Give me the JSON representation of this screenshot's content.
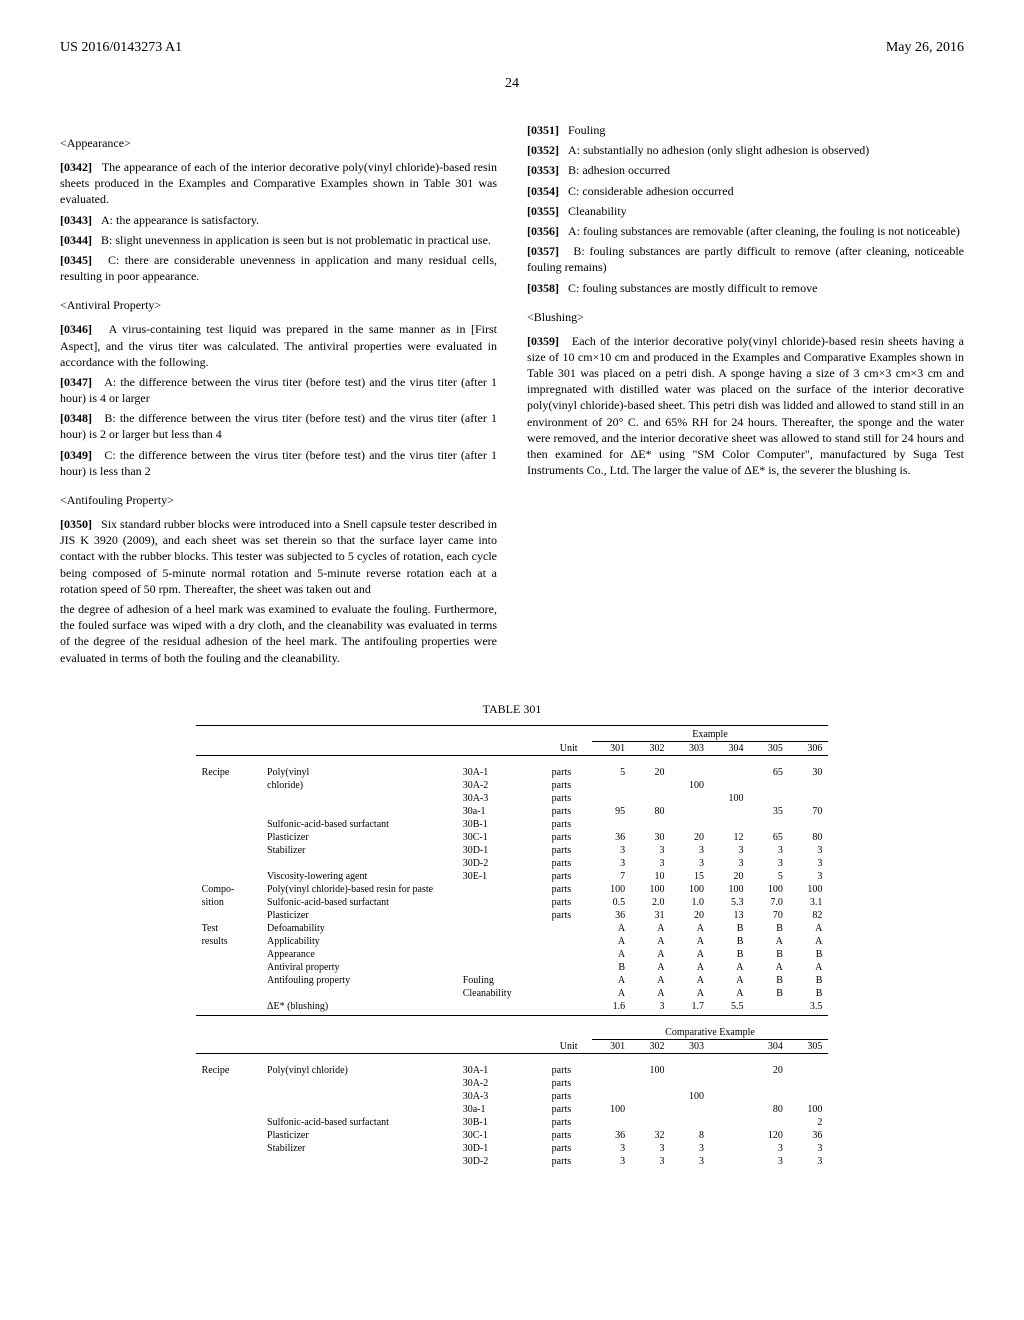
{
  "header": {
    "pub_number": "US 2016/0143273 A1",
    "pub_date": "May 26, 2016",
    "page": "24"
  },
  "sections": {
    "appearance": {
      "heading": "<Appearance>",
      "p0342": "The appearance of each of the interior decorative poly(vinyl chloride)-based resin sheets produced in the Examples and Comparative Examples shown in Table 301 was evaluated.",
      "p0343": "A: the appearance is satisfactory.",
      "p0344": "B: slight unevenness in application is seen but is not problematic in practical use.",
      "p0345": "C: there are considerable unevenness in application and many residual cells, resulting in poor appearance."
    },
    "antiviral": {
      "heading": "<Antiviral Property>",
      "p0346": "A virus-containing test liquid was prepared in the same manner as in [First Aspect], and the virus titer was calculated. The antiviral properties were evaluated in accordance with the following.",
      "p0347": "A: the difference between the virus titer (before test) and the virus titer (after 1 hour) is 4 or larger",
      "p0348": "B: the difference between the virus titer (before test) and the virus titer (after 1 hour) is 2 or larger but less than 4",
      "p0349": "C: the difference between the virus titer (before test) and the virus titer (after 1 hour) is less than 2"
    },
    "antifouling": {
      "heading": "<Antifouling Property>",
      "p0350": "Six standard rubber blocks were introduced into a Snell capsule tester described in JIS K 3920 (2009), and each sheet was set therein so that the surface layer came into contact with the rubber blocks. This tester was subjected to 5 cycles of rotation, each cycle being composed of 5-minute normal rotation and 5-minute reverse rotation each at a rotation speed of 50 rpm. Thereafter, the sheet was taken out and",
      "p0350_cont": "the degree of adhesion of a heel mark was examined to evaluate the fouling. Furthermore, the fouled surface was wiped with a dry cloth, and the cleanability was evaluated in terms of the degree of the residual adhesion of the heel mark. The antifouling properties were evaluated in terms of both the fouling and the cleanability.",
      "p0351": "Fouling",
      "p0352": "A: substantially no adhesion (only slight adhesion is observed)",
      "p0353": "B: adhesion occurred",
      "p0354": "C: considerable adhesion occurred",
      "p0355": "Cleanability",
      "p0356": "A: fouling substances are removable (after cleaning, the fouling is not noticeable)",
      "p0357": "B: fouling substances are partly difficult to remove (after cleaning, noticeable fouling remains)",
      "p0358": "C: fouling substances are mostly difficult to remove"
    },
    "blushing": {
      "heading": "<Blushing>",
      "p0359": "Each of the interior decorative poly(vinyl chloride)-based resin sheets having a size of 10 cm×10 cm and produced in the Examples and Comparative Examples shown in Table 301 was placed on a petri dish. A sponge having a size of 3 cm×3 cm×3 cm and impregnated with distilled water was placed on the surface of the interior decorative poly(vinyl chloride)-based sheet. This petri dish was lidded and allowed to stand still in an environment of 20° C. and 65% RH for 24 hours. Thereafter, the sponge and the water were removed, and the interior decorative sheet was allowed to stand still for 24 hours and then examined for ΔE* using \"SM Color Computer\", manufactured by Suga Test Instruments Co., Ltd. The larger the value of ΔE* is, the severer the blushing is."
    }
  },
  "table": {
    "title": "TABLE 301",
    "group1_header": "Example",
    "group2_header": "Comparative Example",
    "unit_label": "Unit",
    "row_labels": {
      "recipe": "Recipe",
      "pvc": "Poly(vinyl\nchloride)",
      "pvc2": "Poly(vinyl chloride)",
      "surfactant": "Sulfonic-acid-based surfactant",
      "plasticizer": "Plasticizer",
      "stabilizer": "Stabilizer",
      "viscosity": "Viscosity-lowering agent",
      "composition": "Compo-\nsition",
      "pvc_resin_paste": "Poly(vinyl chloride)-based resin for paste",
      "surfactant2": "Sulfonic-acid-based surfactant",
      "plasticizer2": "Plasticizer",
      "test_results": "Test\nresults",
      "defoam": "Defoamability",
      "applic": "Applicability",
      "appear": "Appearance",
      "antiviral": "Antiviral property",
      "antifoul": "Antifouling property",
      "fouling": "Fouling",
      "clean": "Cleanability",
      "blush": "ΔE* (blushing)"
    },
    "codes": {
      "c30A1": "30A-1",
      "c30A2": "30A-2",
      "c30A3": "30A-3",
      "c30a1": "30a-1",
      "c30B1": "30B-1",
      "c30C1": "30C-1",
      "c30D1": "30D-1",
      "c30D2": "30D-2",
      "c30E1": "30E-1"
    },
    "unit_parts": "parts",
    "examples": {
      "cols": [
        "301",
        "302",
        "303",
        "304",
        "305",
        "306"
      ],
      "pvc_30A1": [
        "5",
        "20",
        "",
        "",
        "65",
        "30"
      ],
      "pvc_30A2": [
        "",
        "",
        "100",
        "",
        "",
        ""
      ],
      "pvc_30A3": [
        "",
        "",
        "",
        "100",
        "",
        ""
      ],
      "pvc_30a1": [
        "95",
        "80",
        "",
        "",
        "35",
        "70"
      ],
      "surf_30B1": [
        "",
        "",
        "",
        "",
        "",
        ""
      ],
      "plast_30C1": [
        "36",
        "30",
        "20",
        "12",
        "65",
        "80"
      ],
      "stab_30D1": [
        "3",
        "3",
        "3",
        "3",
        "3",
        "3"
      ],
      "stab_30D2": [
        "3",
        "3",
        "3",
        "3",
        "3",
        "3"
      ],
      "visc_30E1": [
        "7",
        "10",
        "15",
        "20",
        "5",
        "3"
      ],
      "comp_pvc": [
        "100",
        "100",
        "100",
        "100",
        "100",
        "100"
      ],
      "comp_surf": [
        "0.5",
        "2.0",
        "1.0",
        "5.3",
        "7.0",
        "3.1"
      ],
      "comp_plast": [
        "36",
        "31",
        "20",
        "13",
        "70",
        "82"
      ],
      "defoam": [
        "A",
        "A",
        "A",
        "B",
        "B",
        "A"
      ],
      "applic": [
        "A",
        "A",
        "A",
        "B",
        "A",
        "A"
      ],
      "appear": [
        "A",
        "A",
        "A",
        "B",
        "B",
        "B"
      ],
      "antiviral": [
        "B",
        "A",
        "A",
        "A",
        "A",
        "A"
      ],
      "foul": [
        "A",
        "A",
        "A",
        "A",
        "B",
        "B"
      ],
      "clean": [
        "A",
        "A",
        "A",
        "A",
        "B",
        "B"
      ],
      "blush": [
        "1.6",
        "3",
        "1.7",
        "5.5",
        "",
        "3.5"
      ]
    },
    "comp_examples": {
      "cols": [
        "301",
        "302",
        "303",
        "304",
        "305"
      ],
      "pvc_30A1": [
        "",
        "100",
        "",
        "20",
        ""
      ],
      "pvc_30A2": [
        "",
        "",
        "",
        "",
        ""
      ],
      "pvc_30A3": [
        "",
        "",
        "100",
        "",
        ""
      ],
      "pvc_30a1": [
        "100",
        "",
        "",
        "80",
        "100"
      ],
      "surf_30B1": [
        "",
        "",
        "",
        "",
        "2"
      ],
      "plast_30C1": [
        "36",
        "32",
        "8",
        "120",
        "36"
      ],
      "stab_30D1": [
        "3",
        "3",
        "3",
        "3",
        "3"
      ],
      "stab_30D2": [
        "3",
        "3",
        "3",
        "3",
        "3"
      ]
    }
  }
}
